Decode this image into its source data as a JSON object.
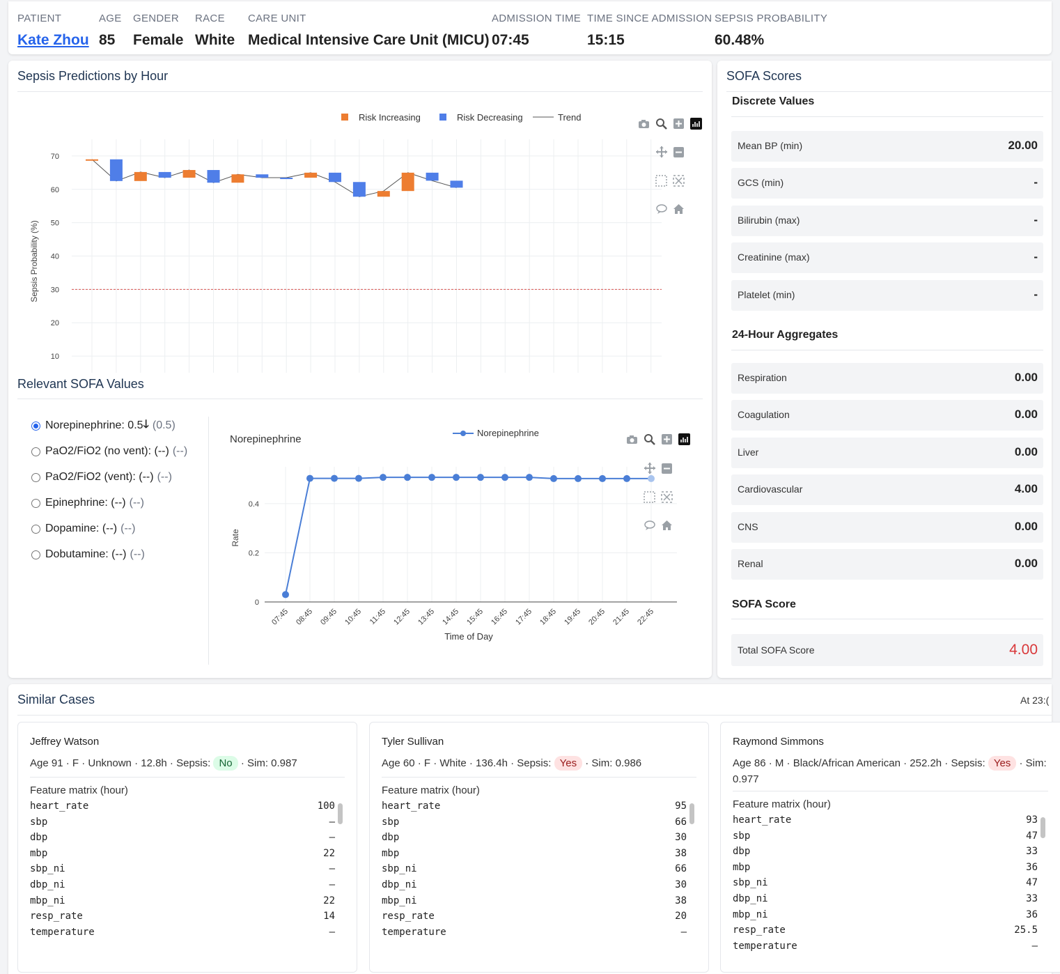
{
  "header": {
    "fields": [
      {
        "label": "PATIENT",
        "value": "Kate Zhou",
        "link": true
      },
      {
        "label": "AGE",
        "value": "85"
      },
      {
        "label": "GENDER",
        "value": "Female"
      },
      {
        "label": "RACE",
        "value": "White"
      },
      {
        "label": "CARE UNIT",
        "value": "Medical Intensive Care Unit (MICU)"
      },
      {
        "label": "ADMISSION TIME",
        "value": "07:45"
      },
      {
        "label": "TIME SINCE ADMISSION",
        "value": "15:15"
      },
      {
        "label": "SEPSIS PROBABILITY",
        "value": "60.48%"
      }
    ]
  },
  "predictions": {
    "title": "Sepsis Predictions by Hour",
    "chart_data": {
      "type": "bar",
      "subtype": "waterfall",
      "ylabel": "Sepsis Probability (%)",
      "xlabel": "",
      "ylim": [
        5,
        75
      ],
      "yticks": [
        10,
        20,
        30,
        40,
        50,
        60,
        70
      ],
      "threshold": 30,
      "legend": [
        "Risk Increasing",
        "Risk Decreasing",
        "Trend"
      ],
      "legend_position": "top",
      "colors": {
        "increasing": "#ed7d31",
        "decreasing": "#4f7ee8",
        "trend": "#555555",
        "threshold": "#d9534f"
      },
      "bars": [
        {
          "start": 69,
          "end": 69,
          "dir": "up"
        },
        {
          "start": 69,
          "end": 62.5,
          "dir": "down"
        },
        {
          "start": 62.5,
          "end": 65.2,
          "dir": "up"
        },
        {
          "start": 65.2,
          "end": 63.5,
          "dir": "down"
        },
        {
          "start": 63.5,
          "end": 65.8,
          "dir": "up"
        },
        {
          "start": 65.8,
          "end": 62,
          "dir": "down"
        },
        {
          "start": 62,
          "end": 64.5,
          "dir": "up"
        },
        {
          "start": 64.5,
          "end": 63.5,
          "dir": "down"
        },
        {
          "start": 63.5,
          "end": 63.5,
          "dir": "down"
        },
        {
          "start": 63.5,
          "end": 65,
          "dir": "up"
        },
        {
          "start": 65,
          "end": 62.2,
          "dir": "down"
        },
        {
          "start": 62.2,
          "end": 57.8,
          "dir": "down"
        },
        {
          "start": 57.8,
          "end": 59.5,
          "dir": "up"
        },
        {
          "start": 59.5,
          "end": 65,
          "dir": "up"
        },
        {
          "start": 65,
          "end": 62.6,
          "dir": "down"
        },
        {
          "start": 62.6,
          "end": 60.5,
          "dir": "down"
        }
      ]
    }
  },
  "relevant": {
    "title": "Relevant SOFA Values",
    "options": [
      {
        "label": "Norepinephrine: 0.5",
        "arrow": "🡓",
        "prev": "(0.5)",
        "selected": true
      },
      {
        "label": "PaO2/FiO2 (no vent): (--)",
        "arrow": "",
        "prev": "(--)",
        "selected": false
      },
      {
        "label": "PaO2/FiO2 (vent): (--)",
        "arrow": "",
        "prev": "(--)",
        "selected": false
      },
      {
        "label": "Epinephrine: (--)",
        "arrow": "",
        "prev": "(--)",
        "selected": false
      },
      {
        "label": "Dopamine: (--)",
        "arrow": "",
        "prev": "(--)",
        "selected": false
      },
      {
        "label": "Dobutamine: (--)",
        "arrow": "",
        "prev": "(--)",
        "selected": false
      }
    ]
  },
  "norepi": {
    "chart_data": {
      "type": "line",
      "title": "Norepinephrine",
      "xlabel": "Time of Day",
      "ylabel": "Rate",
      "ylim": [
        0,
        0.55
      ],
      "yticks": [
        0,
        0.2,
        0.4
      ],
      "legend": "Norepinephrine",
      "color": "#4a7ed6",
      "x": [
        "07:45",
        "08:45",
        "09:45",
        "10:45",
        "11:45",
        "12:45",
        "13:45",
        "14:45",
        "15:45",
        "16:45",
        "17:45",
        "18:45",
        "19:45",
        "20:45",
        "21:45",
        "22:45"
      ],
      "values": [
        0.03,
        0.503,
        0.503,
        0.503,
        0.507,
        0.507,
        0.507,
        0.507,
        0.507,
        0.507,
        0.507,
        0.502,
        0.502,
        0.502,
        0.502,
        0.502
      ]
    }
  },
  "sofa": {
    "title": "SOFA Scores",
    "discrete_title": "Discrete Values",
    "discrete": [
      {
        "label": "Mean BP (min)",
        "value": "20.00"
      },
      {
        "label": "GCS (min)",
        "value": "-"
      },
      {
        "label": "Bilirubin (max)",
        "value": "-"
      },
      {
        "label": "Creatinine (max)",
        "value": "-"
      },
      {
        "label": "Platelet (min)",
        "value": "-"
      }
    ],
    "agg_title": "24-Hour Aggregates",
    "aggregates": [
      {
        "label": "Respiration",
        "value": "0.00"
      },
      {
        "label": "Coagulation",
        "value": "0.00"
      },
      {
        "label": "Liver",
        "value": "0.00"
      },
      {
        "label": "Cardiovascular",
        "value": "4.00"
      },
      {
        "label": "CNS",
        "value": "0.00"
      },
      {
        "label": "Renal",
        "value": "0.00"
      }
    ],
    "score_title": "SOFA Score",
    "total_label": "Total SOFA Score",
    "total_value": "4.00",
    "total_color": "#d9383a"
  },
  "similar": {
    "title": "Similar Cases",
    "at": "At 23:(",
    "matrix_label": "Feature matrix (hour)",
    "cases": [
      {
        "name": "Jeffrey Watson",
        "meta_pre": "Age 91 · F · Unknown · 12.8h · Sepsis:",
        "sepsis": "No",
        "sim": "· Sim: 0.987",
        "features": [
          [
            "heart_rate",
            "100"
          ],
          [
            "sbp",
            "–"
          ],
          [
            "dbp",
            "–"
          ],
          [
            "mbp",
            "22"
          ],
          [
            "sbp_ni",
            "–"
          ],
          [
            "dbp_ni",
            "–"
          ],
          [
            "mbp_ni",
            "22"
          ],
          [
            "resp_rate",
            "14"
          ],
          [
            "temperature",
            "–"
          ]
        ]
      },
      {
        "name": "Tyler Sullivan",
        "meta_pre": "Age 60 · F · White · 136.4h · Sepsis:",
        "sepsis": "Yes",
        "sim": "· Sim: 0.986",
        "features": [
          [
            "heart_rate",
            "95"
          ],
          [
            "sbp",
            "66"
          ],
          [
            "dbp",
            "30"
          ],
          [
            "mbp",
            "38"
          ],
          [
            "sbp_ni",
            "66"
          ],
          [
            "dbp_ni",
            "30"
          ],
          [
            "mbp_ni",
            "38"
          ],
          [
            "resp_rate",
            "20"
          ],
          [
            "temperature",
            "–"
          ]
        ]
      },
      {
        "name": "Raymond Simmons",
        "meta_pre": "Age 86 · M · Black/African American · 252.2h · Sepsis:",
        "sepsis": "Yes",
        "sim": "· Sim: 0.977",
        "features": [
          [
            "heart_rate",
            "93"
          ],
          [
            "sbp",
            "47"
          ],
          [
            "dbp",
            "33"
          ],
          [
            "mbp",
            "36"
          ],
          [
            "sbp_ni",
            "47"
          ],
          [
            "dbp_ni",
            "33"
          ],
          [
            "mbp_ni",
            "36"
          ],
          [
            "resp_rate",
            "25.5"
          ],
          [
            "temperature",
            "–"
          ]
        ]
      }
    ]
  }
}
